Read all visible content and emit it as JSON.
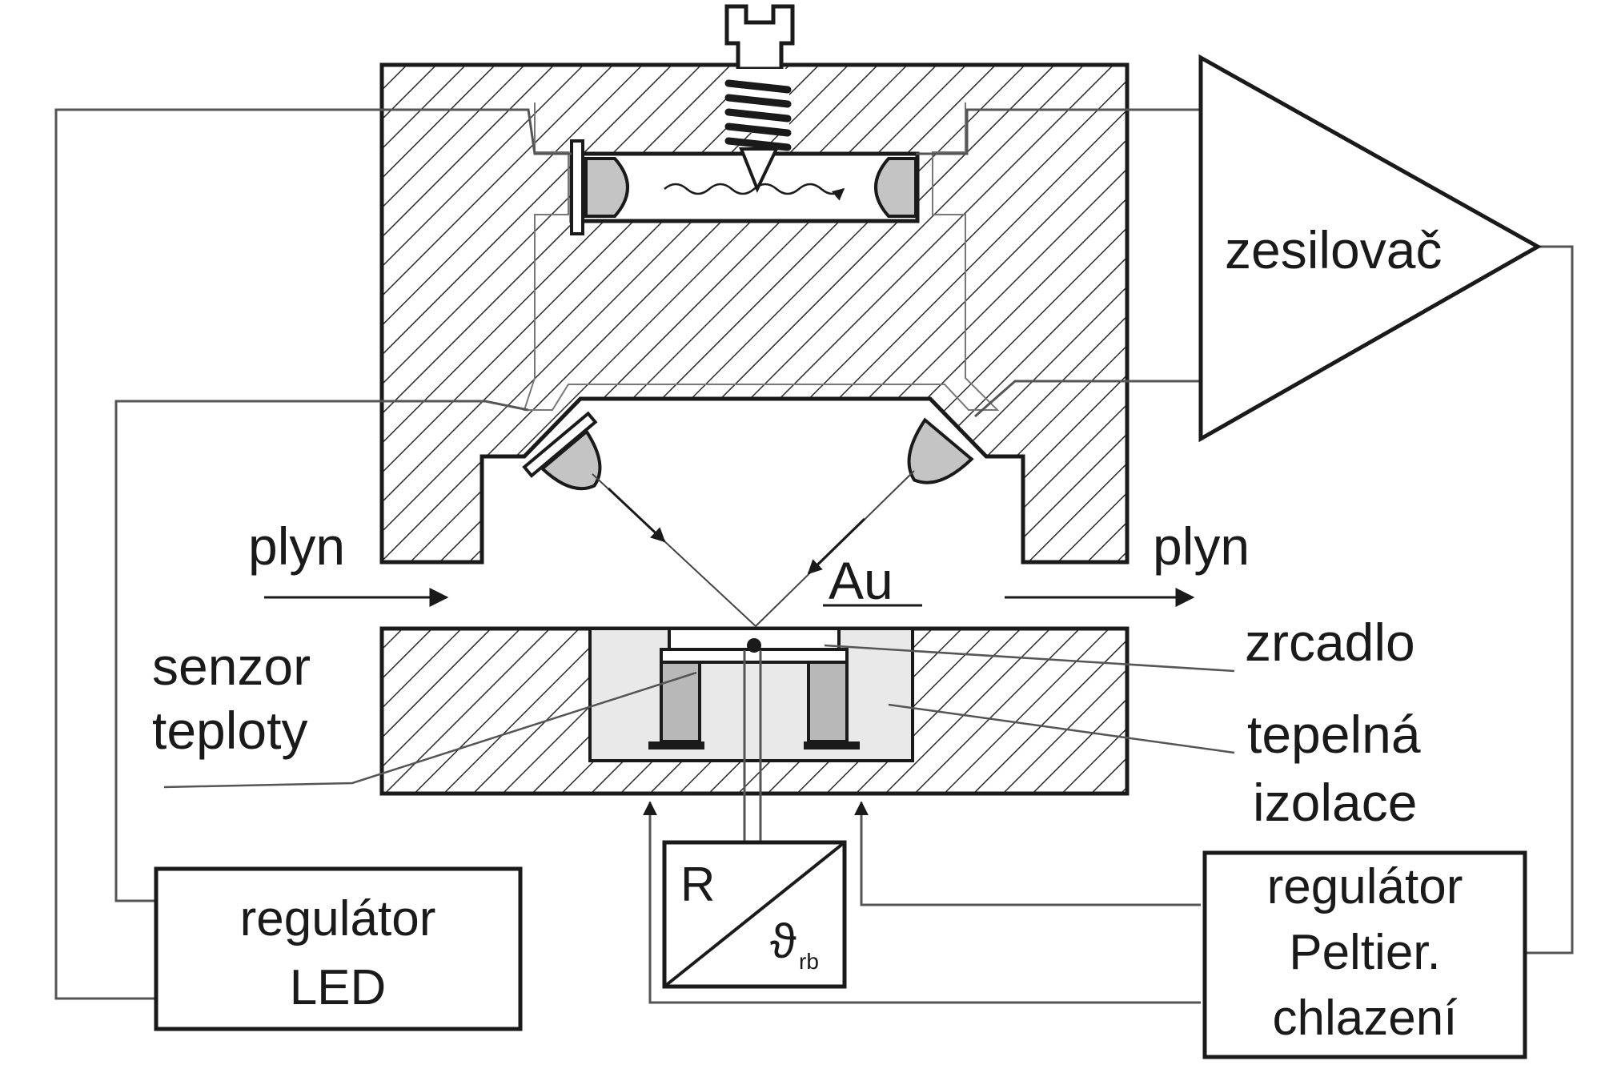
{
  "diagram": {
    "labels": {
      "gas_in": "plyn",
      "gas_out": "plyn",
      "gold": "Au",
      "mirror": "zrcadlo",
      "sensor_line1": "senzor",
      "sensor_line2": "teploty",
      "insulation_line1": "tepelná",
      "insulation_line2": "izolace",
      "amplifier": "zesilovač",
      "led_regulator_line1": "regulátor",
      "led_regulator_line2": "LED",
      "peltier_regulator_line1": "regulátor",
      "peltier_regulator_line2": "Peltier.",
      "peltier_regulator_line3": "chlazení",
      "converter_r": "R",
      "converter_theta": "ϑ",
      "converter_theta_sub": "rb"
    },
    "colors": {
      "line": "#1a1a1a",
      "wire": "#555555",
      "hatch": "#2a2a2a",
      "led_fill": "#c4c4c4",
      "insulation_fill": "#e9e9e9",
      "peltier_fill": "#b8b8b8"
    }
  }
}
